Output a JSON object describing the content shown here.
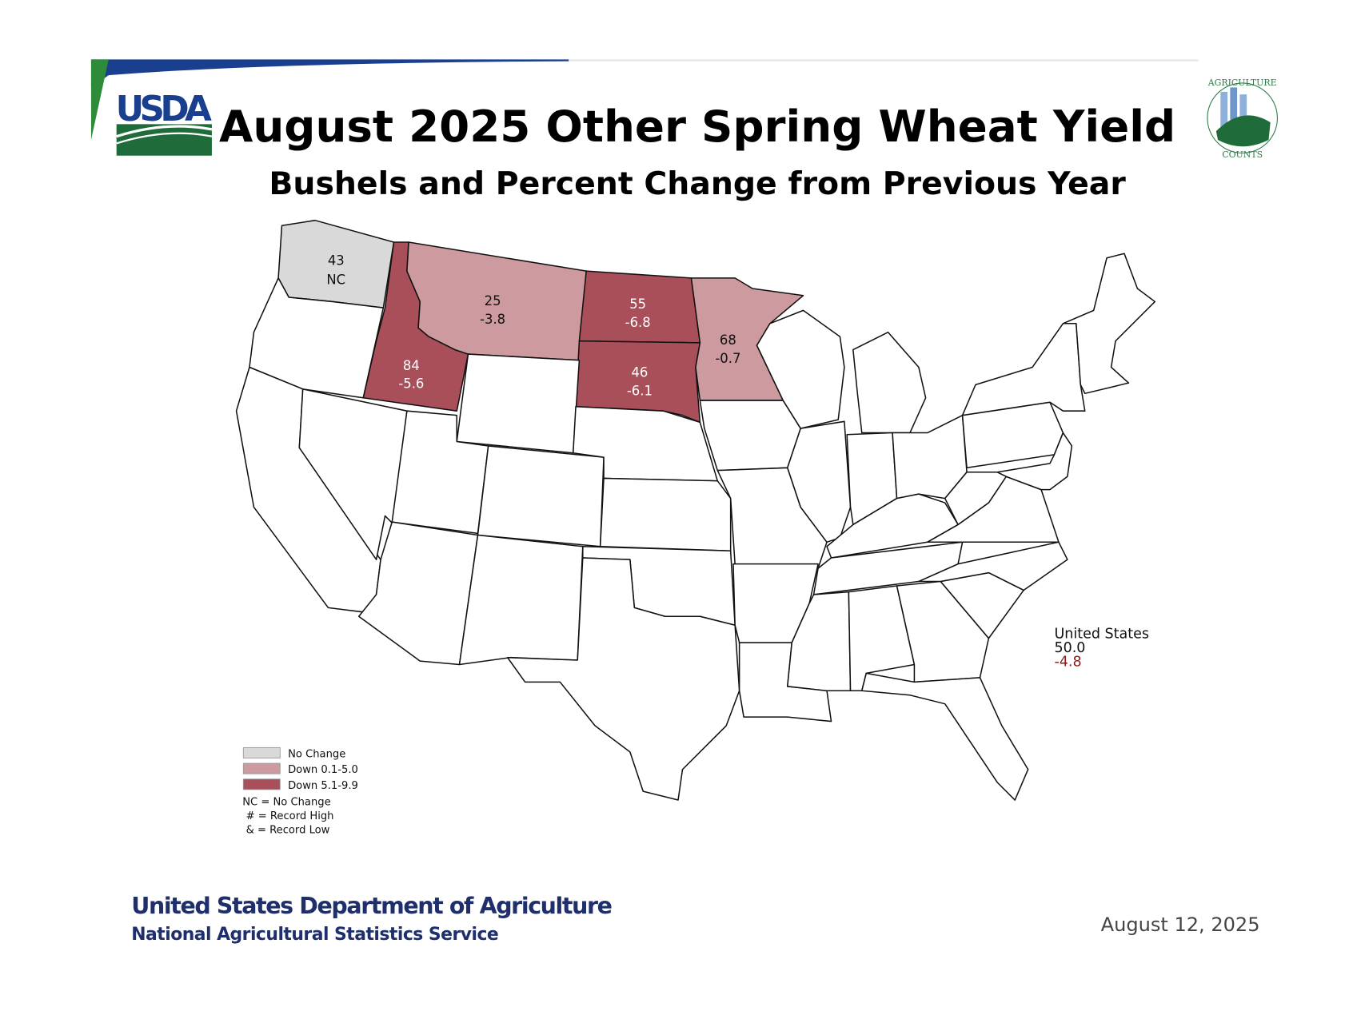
{
  "header": {
    "logo_text": "USDA",
    "badge_text_top": "AGRICULTURE",
    "badge_text_bottom": "COUNTS",
    "title": "August 2025 Other Spring Wheat Yield",
    "subtitle": "Bushels and Percent Change from Previous Year"
  },
  "colors": {
    "no_change": "#d9d9d9",
    "down_0_1_5_0": "#cc9a9f",
    "down_5_1_9_9": "#a84f5a",
    "none": "#ffffff",
    "us_change": "#8b1a1a",
    "footer_navy": "#1f2f6b"
  },
  "chart_data": {
    "type": "choropleth",
    "title": "August 2025 Other Spring Wheat Yield",
    "subtitle": "Bushels and Percent Change from Previous Year",
    "units": "bushels per acre; percent change from previous year",
    "states": [
      {
        "name": "Washington",
        "yield": "43",
        "change": "NC",
        "category": "no_change"
      },
      {
        "name": "Idaho",
        "yield": "84",
        "change": "-5.6",
        "category": "down_5_1_9_9"
      },
      {
        "name": "Montana",
        "yield": "25",
        "change": "-3.8",
        "category": "down_0_1_5_0"
      },
      {
        "name": "North Dakota",
        "yield": "55",
        "change": "-6.8",
        "category": "down_5_1_9_9"
      },
      {
        "name": "South Dakota",
        "yield": "46",
        "change": "-6.1",
        "category": "down_5_1_9_9"
      },
      {
        "name": "Minnesota",
        "yield": "68",
        "change": "-0.7",
        "category": "down_0_1_5_0"
      }
    ],
    "national": {
      "label": "United States",
      "yield": "50.0",
      "change": "-4.8"
    },
    "legend": {
      "position": "bottom-left",
      "entries": [
        {
          "label": "No Change",
          "category": "no_change"
        },
        {
          "label": "Down 0.1-5.0",
          "category": "down_0_1_5_0"
        },
        {
          "label": "Down 5.1-9.9",
          "category": "down_5_1_9_9"
        }
      ],
      "notes": [
        "NC = No Change",
        "# = Record High",
        "& = Record Low"
      ]
    }
  },
  "footer": {
    "agency": "United States Department of Agriculture",
    "service": "National Agricultural Statistics Service",
    "date": "August 12, 2025"
  }
}
